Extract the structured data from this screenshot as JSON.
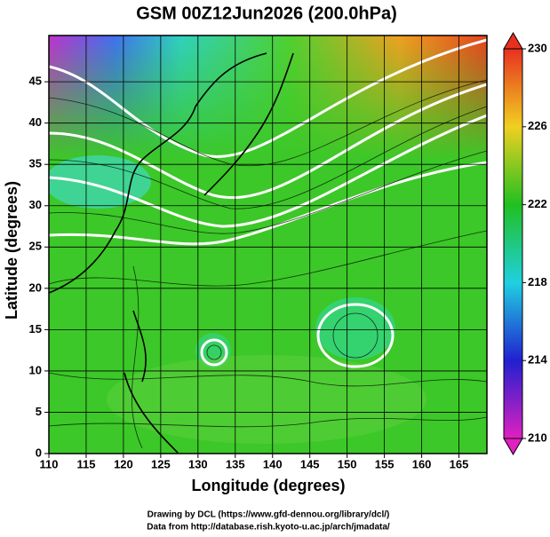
{
  "chart_data": {
    "type": "map",
    "title": "GSM 00Z12Jun2026 (200.0hPa)",
    "x_label": "Longitude (degrees)",
    "y_label": "Latitude  (degrees)",
    "xlim": [
      110,
      168.75
    ],
    "ylim": [
      0,
      50.6
    ],
    "xticks": [
      110,
      115,
      120,
      125,
      130,
      135,
      140,
      145,
      150,
      155,
      160,
      165
    ],
    "yticks": [
      0,
      5,
      10,
      15,
      20,
      25,
      30,
      35,
      40,
      45
    ],
    "grid": true,
    "colorbar": {
      "range": [
        210,
        230
      ],
      "ticks": [
        210,
        214,
        218,
        222,
        226,
        230
      ],
      "colors": [
        "#e020c0",
        "#2020d0",
        "#20d0e0",
        "#20c020",
        "#f0d020",
        "#e83020"
      ]
    },
    "credits": [
      "Drawing by DCL (https://www.gfd-dennou.org/library/dcl/)",
      "Data from http://database.rish.kyoto-u.ac.jp/arch/jmadata/"
    ]
  }
}
